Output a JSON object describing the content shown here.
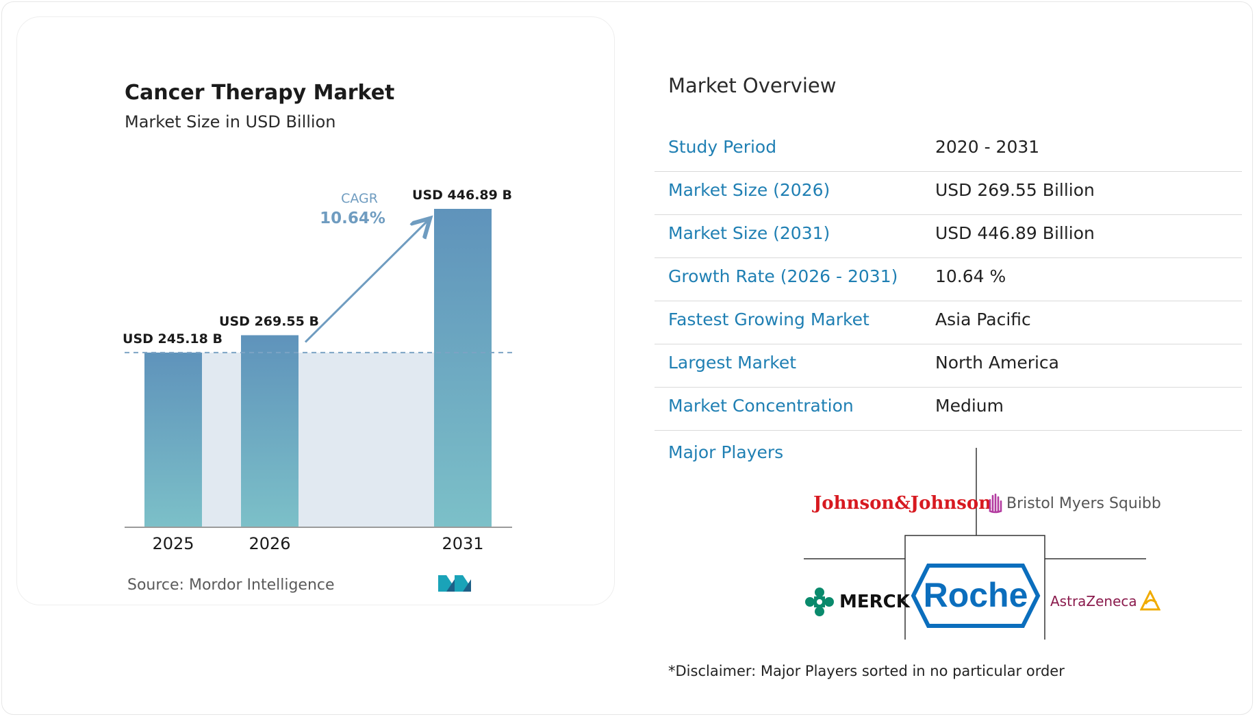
{
  "chart": {
    "title": "Cancer Therapy Market",
    "subtitle": "Market Size in USD Billion",
    "cagr_label": "CAGR",
    "cagr_value": "10.64%",
    "source": "Source: Mordor Intelligence",
    "logo": "mordor-intelligence-logo"
  },
  "chart_data": {
    "type": "bar",
    "categories": [
      "2025",
      "2026",
      "2031"
    ],
    "values": [
      245.18,
      269.55,
      446.89
    ],
    "data_labels": [
      "USD 245.18 B",
      "USD 269.55 B",
      "USD 446.89 B"
    ],
    "title": "Cancer Therapy Market",
    "subtitle": "Market Size in USD Billion",
    "ylim": [
      0,
      446.89
    ],
    "grid": false,
    "annotations": [
      "CAGR",
      "10.64%"
    ]
  },
  "overview": {
    "title": "Market Overview",
    "rows": [
      {
        "label": "Study Period",
        "value": "2020 - 2031"
      },
      {
        "label": "Market Size (2026)",
        "value": "USD 269.55 Billion"
      },
      {
        "label": "Market Size (2031)",
        "value": "USD 446.89 Billion"
      },
      {
        "label": "Growth Rate (2026 - 2031)",
        "value": "10.64 %"
      },
      {
        "label": "Fastest Growing Market",
        "value": "Asia Pacific"
      },
      {
        "label": "Largest Market",
        "value": "North America"
      },
      {
        "label": "Market Concentration",
        "value": "Medium"
      }
    ],
    "players_label": "Major Players",
    "players": {
      "jnj": "Johnson&Johnson",
      "bms": "Bristol Myers Squibb",
      "merck": "MERCK",
      "roche": "Roche",
      "astrazeneca": "AstraZeneca"
    },
    "disclaimer": "*Disclaimer: Major Players sorted in no particular order"
  },
  "colors": {
    "bar_top": "#5f93bb",
    "bar_bottom": "#7cc0c8",
    "shade": "#e1e9f1",
    "accent": "#1f7fb3",
    "cagr": "#6f9cc0"
  }
}
